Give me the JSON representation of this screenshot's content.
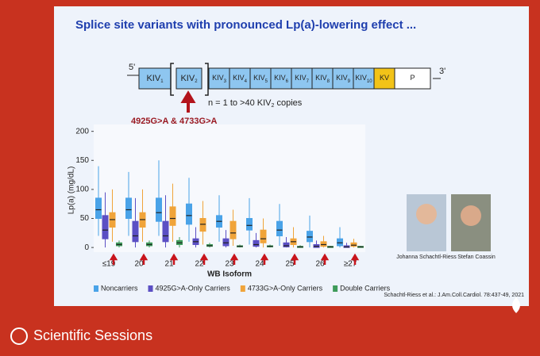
{
  "slide": {
    "title": "Splice site variants with pronounced Lp(a)-lowering effect ...",
    "gene": {
      "five": "5'",
      "three": "3'",
      "segments": [
        {
          "base": "KIV",
          "sub": "1"
        },
        {
          "base": "KIV",
          "sub": "2"
        },
        {
          "base": "KIV",
          "sub": "3"
        },
        {
          "base": "KIV",
          "sub": "4"
        },
        {
          "base": "KIV",
          "sub": "5"
        },
        {
          "base": "KIV",
          "sub": "6"
        },
        {
          "base": "KIV",
          "sub": "7"
        },
        {
          "base": "KIV",
          "sub": "8"
        },
        {
          "base": "KIV",
          "sub": "9"
        },
        {
          "base": "KIV",
          "sub": "10"
        },
        {
          "base": "KV",
          "sub": null
        },
        {
          "base": "P",
          "sub": null
        }
      ],
      "copies": {
        "before": "n = 1 to >40 KIV",
        "sub": "2",
        "after": " copies"
      },
      "variants": "4925G>A & 4733G>A"
    },
    "people": [
      "Johanna Schachtl-Riess",
      "Stefan Coassin"
    ],
    "citation": "Schachtl-Riess et al.: J.Am.Coll.Cardiol. 78:437-49, 2021"
  },
  "footer": "Scientific Sessions",
  "chart_data": {
    "type": "box",
    "y_label": "Lp(a) (mg/dL)",
    "x_label": "WB Isoform",
    "categories": [
      "≤19",
      "20",
      "21",
      "22",
      "23",
      "24",
      "25",
      "26",
      "≥27"
    ],
    "ylim": [
      -8,
      205
    ],
    "yticks": [
      0,
      50,
      100,
      150,
      200
    ],
    "series": [
      {
        "name": "Noncarriers",
        "color": "#4aa3e8",
        "whislo": [
          20,
          20,
          20,
          10,
          10,
          5,
          3,
          0,
          0
        ],
        "q1": [
          50,
          50,
          45,
          40,
          35,
          30,
          20,
          10,
          3
        ],
        "median": [
          65,
          65,
          60,
          55,
          45,
          38,
          30,
          18,
          8
        ],
        "q3": [
          85,
          85,
          85,
          75,
          55,
          50,
          45,
          28,
          15
        ],
        "whishi": [
          140,
          130,
          150,
          120,
          90,
          85,
          75,
          55,
          35
        ]
      },
      {
        "name": "4925G>A-Only Carriers",
        "color": "#5b4fc4",
        "whislo": [
          0,
          0,
          0,
          0,
          0,
          0,
          0,
          0,
          0
        ],
        "q1": [
          15,
          10,
          10,
          5,
          3,
          2,
          1,
          0,
          0
        ],
        "median": [
          30,
          20,
          20,
          10,
          8,
          5,
          3,
          2,
          1
        ],
        "q3": [
          55,
          45,
          45,
          15,
          15,
          12,
          8,
          5,
          3
        ],
        "whishi": [
          95,
          85,
          90,
          35,
          30,
          25,
          18,
          12,
          8
        ]
      },
      {
        "name": "4733G>A-Only Carriers",
        "color": "#f0a43a",
        "whislo": [
          10,
          10,
          10,
          5,
          3,
          0,
          0,
          0,
          0
        ],
        "q1": [
          35,
          35,
          38,
          28,
          15,
          8,
          5,
          2,
          2
        ],
        "median": [
          48,
          48,
          50,
          40,
          25,
          15,
          10,
          5,
          4
        ],
        "q3": [
          60,
          60,
          70,
          50,
          45,
          30,
          15,
          10,
          8
        ],
        "whishi": [
          100,
          100,
          110,
          80,
          65,
          50,
          35,
          20,
          15
        ]
      },
      {
        "name": "Double Carriers",
        "color": "#3e9b5a",
        "whislo": [
          0,
          0,
          0,
          0,
          0,
          0,
          0,
          0,
          0
        ],
        "q1": [
          3,
          3,
          5,
          2,
          1,
          1,
          0,
          0,
          0
        ],
        "median": [
          5,
          5,
          8,
          3,
          2,
          2,
          1,
          1,
          1
        ],
        "q3": [
          8,
          8,
          12,
          5,
          3,
          3,
          2,
          2,
          2
        ],
        "whishi": [
          12,
          12,
          18,
          8,
          5,
          5,
          4,
          3,
          3
        ]
      }
    ]
  }
}
